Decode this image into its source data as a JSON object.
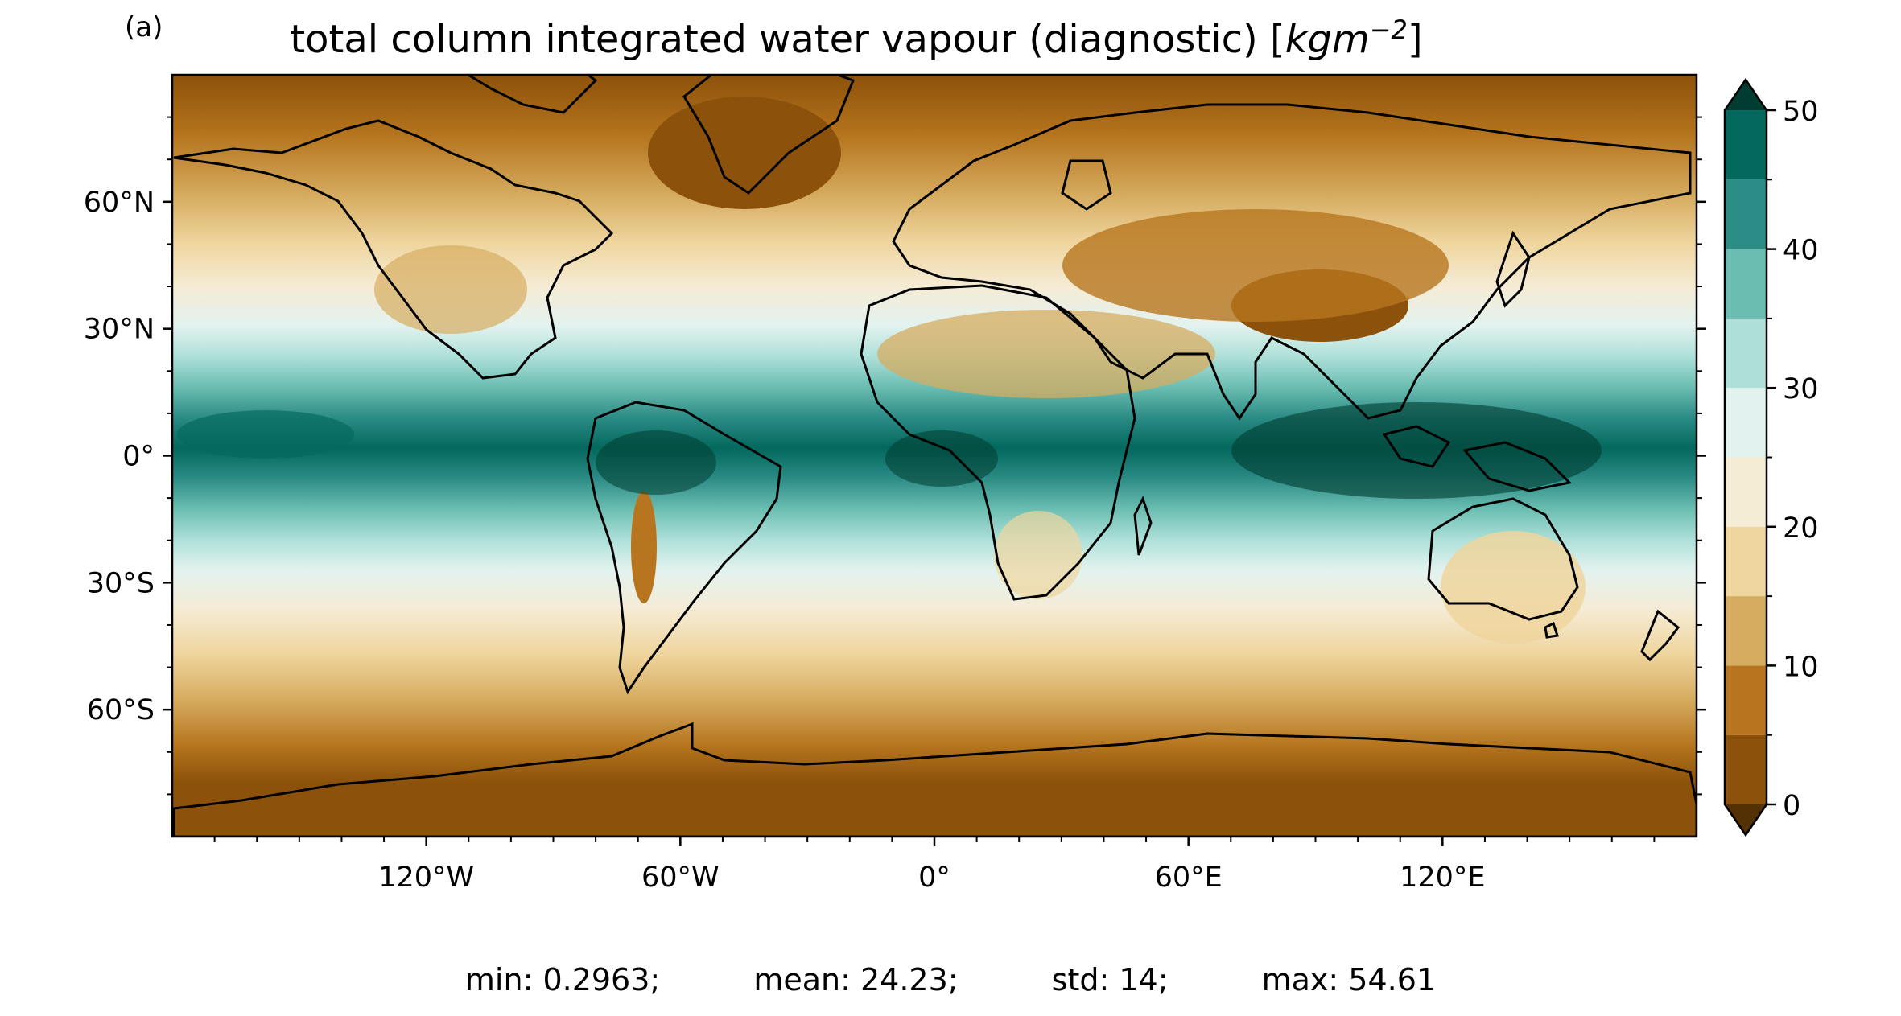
{
  "figure": {
    "panel_label": "(a)",
    "title_text": "total column integrated water vapour (diagnostic) ",
    "title_unit_open": "[",
    "title_unit_main": "kgm",
    "title_unit_exp": "−2",
    "title_unit_close": "]"
  },
  "stats": {
    "min": "min: 0.2963;",
    "mean": "mean: 24.23;",
    "std": "std: 14;",
    "max": "max: 54.61"
  },
  "map": {
    "projection": "PlateCarree",
    "lon_range": [
      -180,
      180
    ],
    "lat_range": [
      -90,
      90
    ],
    "coastlines": true,
    "x_ticks": [
      {
        "lon": -120,
        "label": "120°W"
      },
      {
        "lon": -60,
        "label": "60°W"
      },
      {
        "lon": 0,
        "label": "0°"
      },
      {
        "lon": 60,
        "label": "60°E"
      },
      {
        "lon": 120,
        "label": "120°E"
      }
    ],
    "y_ticks": [
      {
        "lat": 60,
        "label": "60°N"
      },
      {
        "lat": 30,
        "label": "30°N"
      },
      {
        "lat": 0,
        "label": "0°"
      },
      {
        "lat": -30,
        "label": "30°S"
      },
      {
        "lat": -60,
        "label": "60°S"
      }
    ]
  },
  "colorbar": {
    "extend": "both",
    "levels": [
      0,
      5,
      10,
      15,
      20,
      25,
      30,
      35,
      40,
      45,
      50
    ],
    "colors": [
      "#8c510a",
      "#b6751e",
      "#d6ac60",
      "#efd59e",
      "#f5ecd6",
      "#e2f2ef",
      "#aee0d9",
      "#6bbdb1",
      "#2c8c86",
      "#03685d"
    ],
    "under_color": "#543005",
    "over_color": "#003c30",
    "ticks": [
      {
        "value": 0,
        "label": "0"
      },
      {
        "value": 10,
        "label": "10"
      },
      {
        "value": 20,
        "label": "20"
      },
      {
        "value": 30,
        "label": "30"
      },
      {
        "value": 40,
        "label": "40"
      },
      {
        "value": 50,
        "label": "50"
      }
    ]
  }
}
